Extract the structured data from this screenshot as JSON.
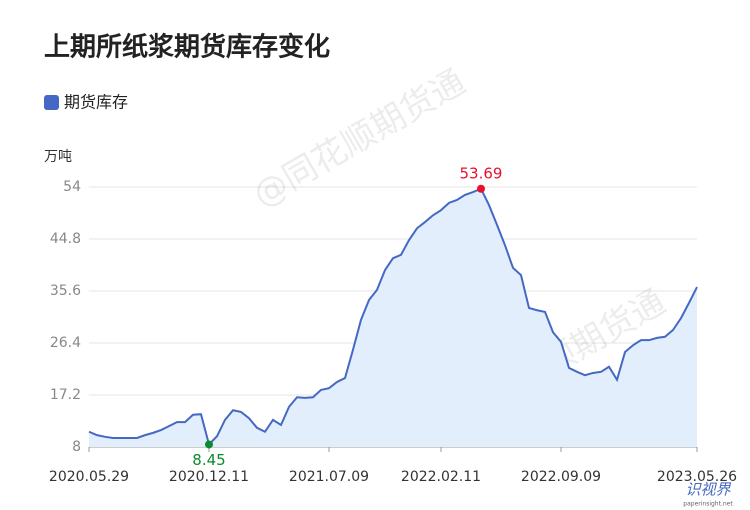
{
  "chart_data": {
    "type": "area",
    "title": "上期所纸浆期货库存变化",
    "y_unit": "万吨",
    "watermark": "@同花顺期货通",
    "logo": [
      "识视界",
      "paperinsight.net"
    ],
    "categories": [
      "2020.05.29",
      null,
      null,
      null,
      null,
      null,
      null,
      null,
      null,
      null,
      null,
      null,
      null,
      null,
      null,
      "2020.12.11",
      null,
      null,
      null,
      null,
      null,
      null,
      null,
      null,
      null,
      null,
      null,
      null,
      null,
      null,
      "2021.07.09",
      null,
      null,
      null,
      null,
      null,
      null,
      null,
      null,
      null,
      null,
      null,
      null,
      null,
      "2022.02.11",
      null,
      null,
      null,
      null,
      null,
      null,
      null,
      null,
      null,
      null,
      null,
      null,
      null,
      null,
      "2022.09.09",
      null,
      null,
      null,
      null,
      null,
      null,
      null,
      null,
      null,
      null,
      null,
      null,
      null,
      null,
      null,
      null,
      "2023.05.26"
    ],
    "series": [
      {
        "name": "期货库存",
        "color": "#4468c4",
        "fill": "#e3eefc",
        "values": [
          10.7,
          10.1,
          9.8,
          9.6,
          9.6,
          9.6,
          9.6,
          10.1,
          10.5,
          11.0,
          11.7,
          12.4,
          12.4,
          13.7,
          13.8,
          8.45,
          9.9,
          12.8,
          14.5,
          14.2,
          13.1,
          11.4,
          10.7,
          12.8,
          11.9,
          15.1,
          16.8,
          16.7,
          16.8,
          18.1,
          18.4,
          19.5,
          20.2,
          25.2,
          30.5,
          34.0,
          35.8,
          39.3,
          41.4,
          42.0,
          44.6,
          46.7,
          47.8,
          49.0,
          49.9,
          51.2,
          51.7,
          52.6,
          53.1,
          53.69,
          50.8,
          47.3,
          43.7,
          39.7,
          38.4,
          32.6,
          32.2,
          31.9,
          28.3,
          26.6,
          22.0,
          21.3,
          20.7,
          21.1,
          21.3,
          22.2,
          19.9,
          24.8,
          26.0,
          26.9,
          26.9,
          27.3,
          27.5,
          28.7,
          30.8,
          33.5,
          36.3
        ]
      }
    ],
    "annotations": [
      {
        "index": 49,
        "color": "#e8112d"
      },
      {
        "index": 15,
        "color": "#0b8a2f"
      }
    ],
    "ylim": [
      8,
      54
    ],
    "yticks": [
      8,
      17.2,
      26.4,
      35.6,
      44.8,
      54
    ],
    "grid": true
  }
}
